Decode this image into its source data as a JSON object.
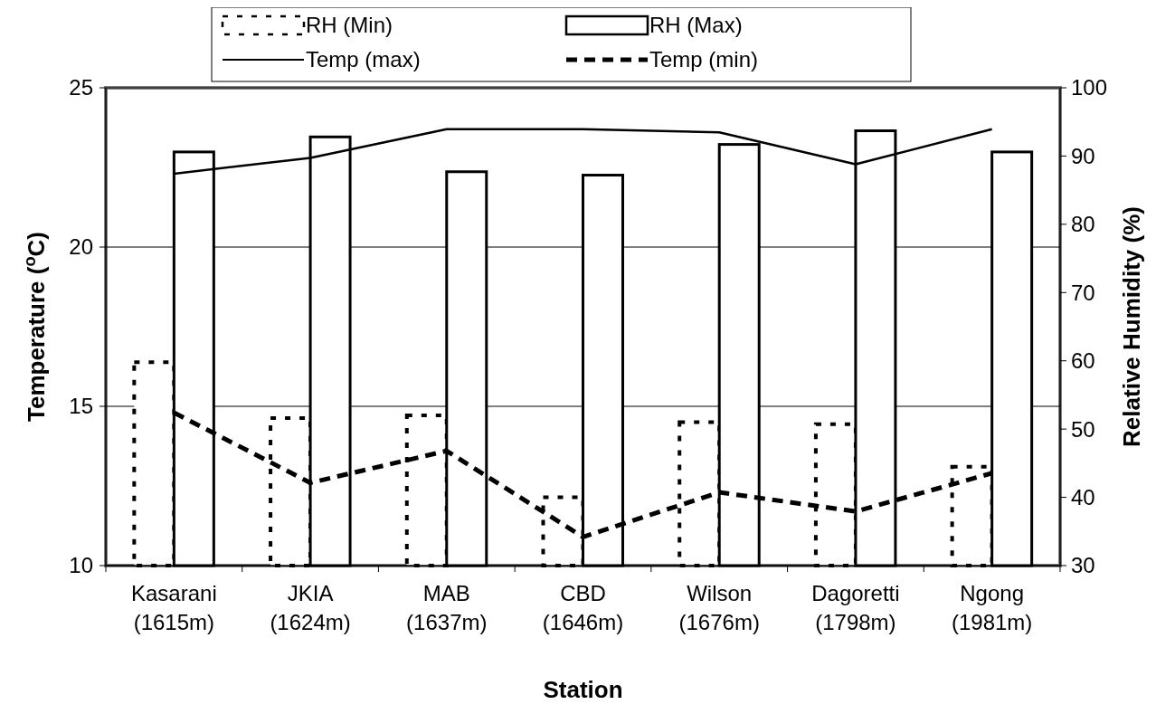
{
  "chart_data": {
    "type": "bar",
    "categories": [
      "Kasarani\n(1615m)",
      "JKIA\n(1624m)",
      "MAB\n(1637m)",
      "CBD\n(1646m)",
      "Wilson\n(1676m)",
      "Dagoretti\n(1798m)",
      "Ngong\n(1981m)"
    ],
    "series": [
      {
        "name": "RH (Min)",
        "axis": "y2",
        "color": "#ffffff",
        "line_style": "dotted",
        "values": [
          59.8,
          51.6,
          52.0,
          40.0,
          51.0,
          50.7,
          44.5
        ]
      },
      {
        "name": "RH (Max)",
        "axis": "y2",
        "color": "#ffffff",
        "line_style": "solid",
        "values": [
          90.6,
          92.8,
          87.7,
          87.2,
          91.7,
          93.7,
          90.6
        ]
      },
      {
        "name": "Temp (max)",
        "type": "line",
        "color": "#000000",
        "line_style": "solid",
        "values": [
          22.3,
          22.8,
          23.7,
          23.7,
          23.6,
          22.6,
          23.7
        ]
      },
      {
        "name": "Temp (min)",
        "type": "line",
        "color": "#000000",
        "line_style": "dashed",
        "values": [
          14.8,
          12.6,
          13.6,
          10.9,
          12.3,
          11.7,
          12.9
        ]
      }
    ],
    "xlabel": "Station",
    "ylabel": "Temperature ($^{o}$C)",
    "y2label": "Relative Humidity (%)",
    "ylim": [
      10,
      25
    ],
    "yticks": [
      10,
      15,
      20,
      25
    ],
    "y2lim": [
      30,
      100
    ],
    "y2ticks": [
      30,
      40,
      50,
      60,
      70,
      80,
      90,
      100
    ],
    "grid": "y",
    "legend": "top",
    "marker": "none"
  }
}
